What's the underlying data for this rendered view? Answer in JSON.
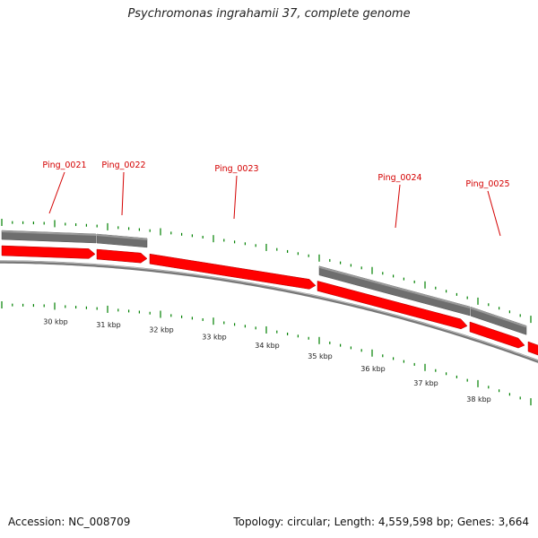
{
  "title": "Psychromonas ingrahamii 37, complete genome",
  "footer": {
    "accession_label": "Accession:",
    "accession": "NC_008709",
    "topology_label": "Topology:",
    "topology": "circular",
    "length_label": "Length:",
    "length": "4,559,598 bp",
    "genes_label": "Genes:",
    "genes": "3,664"
  },
  "colors": {
    "forward_gene": "#ff0000",
    "grey_feature": "#6e6e6e",
    "backbone": "#777777",
    "ticks": "#008000",
    "gene_label": "#d40000"
  },
  "axis": {
    "unit": "kbp",
    "ticks": [
      {
        "value": 30,
        "label": "30 kbp"
      },
      {
        "value": 31,
        "label": "31 kbp"
      },
      {
        "value": 32,
        "label": "32 kbp"
      },
      {
        "value": 33,
        "label": "33 kbp"
      },
      {
        "value": 34,
        "label": "34 kbp"
      },
      {
        "value": 35,
        "label": "35 kbp"
      },
      {
        "value": 36,
        "label": "36 kbp"
      },
      {
        "value": 37,
        "label": "37 kbp"
      },
      {
        "value": 38,
        "label": "38 kbp"
      }
    ]
  },
  "genes": [
    {
      "locus_tag": "Ping_0021"
    },
    {
      "locus_tag": "Ping_0022"
    },
    {
      "locus_tag": "Ping_0023"
    },
    {
      "locus_tag": "Ping_0024"
    },
    {
      "locus_tag": "Ping_0025"
    }
  ]
}
